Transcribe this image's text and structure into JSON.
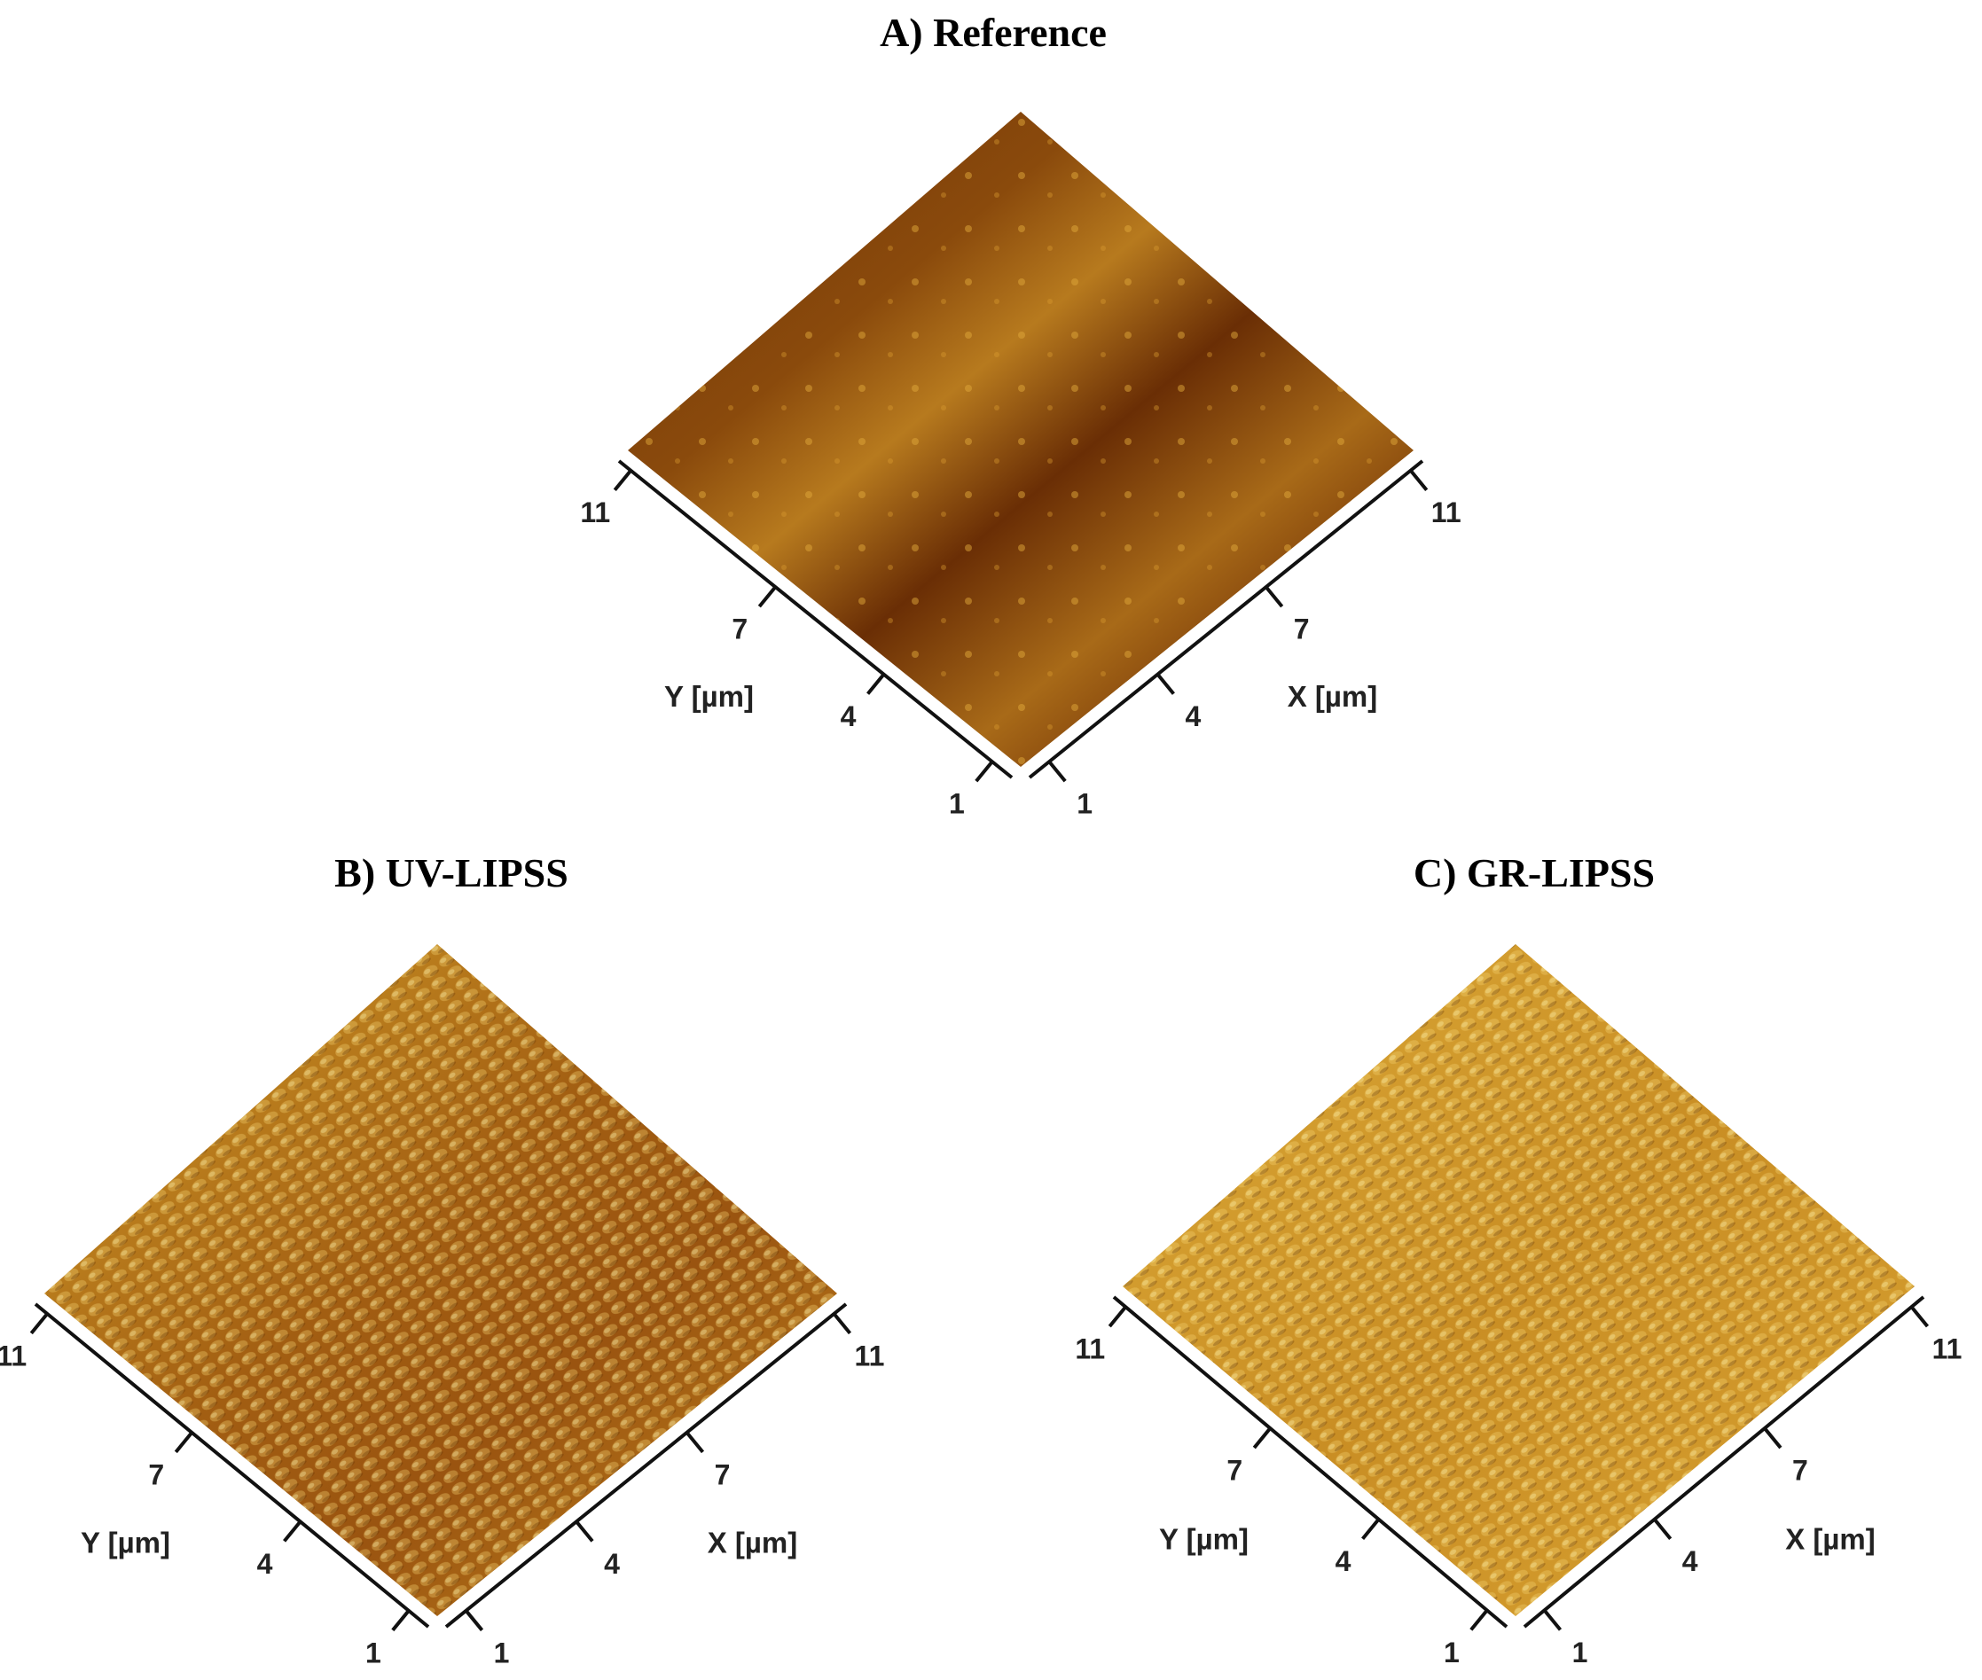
{
  "panels": [
    {
      "title": "A) Reference",
      "x_label": "X [µm]",
      "y_label": "Y [µm]",
      "x_ticks": [
        1,
        4,
        7,
        11
      ],
      "y_ticks": [
        1,
        4,
        7,
        11
      ]
    },
    {
      "title": "B) UV-LIPSS",
      "x_label": "X [µm]",
      "y_label": "Y [µm]",
      "x_ticks": [
        1,
        4,
        7,
        11
      ],
      "y_ticks": [
        1,
        4,
        7,
        11
      ]
    },
    {
      "title": "C) GR-LIPSS",
      "x_label": "X [µm]",
      "y_label": "Y [µm]",
      "x_ticks": [
        1,
        4,
        7,
        11
      ],
      "y_ticks": [
        1,
        4,
        7,
        11
      ]
    }
  ]
}
